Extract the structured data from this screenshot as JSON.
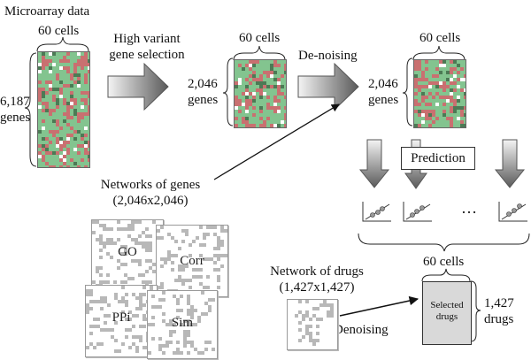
{
  "texts": {
    "microarray_title": "Microarray data",
    "cells_label_1": "60 cells",
    "cells_label_2": "60 cells",
    "cells_label_3": "60 cells",
    "cells_label_bottom": "60 cells",
    "genes_count_initial_num": "6,187",
    "genes_word_1": "genes",
    "genes_count_selected_num": "2,046",
    "genes_word_2": "genes",
    "genes_count_denoised_num": "2,046",
    "genes_word_3": "genes",
    "step_selection_line1": "High variant",
    "step_selection_line2": "gene selection",
    "step_denoising": "De-noising",
    "networks_genes_line1": "Networks of genes",
    "networks_genes_line2": "(2,046x2,046)",
    "prediction": "Prediction",
    "ellipsis": "…",
    "network_drugs_line1": "Network of drugs",
    "network_drugs_line2": "(1,427x1,427)",
    "denoising_drugs": "Denoising",
    "selected_drugs_line1": "Selected",
    "selected_drugs_line2": "drugs",
    "drugs_count_num": "1,427",
    "drugs_word": "drugs"
  },
  "networks": [
    "GO",
    "Corr",
    "PPi",
    "Sim"
  ],
  "colors": {
    "heatmap_green": "#83c48f",
    "heatmap_red": "#c97070",
    "heatmap_white": "#ffffff",
    "heatmap_dark": "#4c7a55",
    "network_dot": "#b8b8b8",
    "selected_fill": "#d9d9d9"
  }
}
